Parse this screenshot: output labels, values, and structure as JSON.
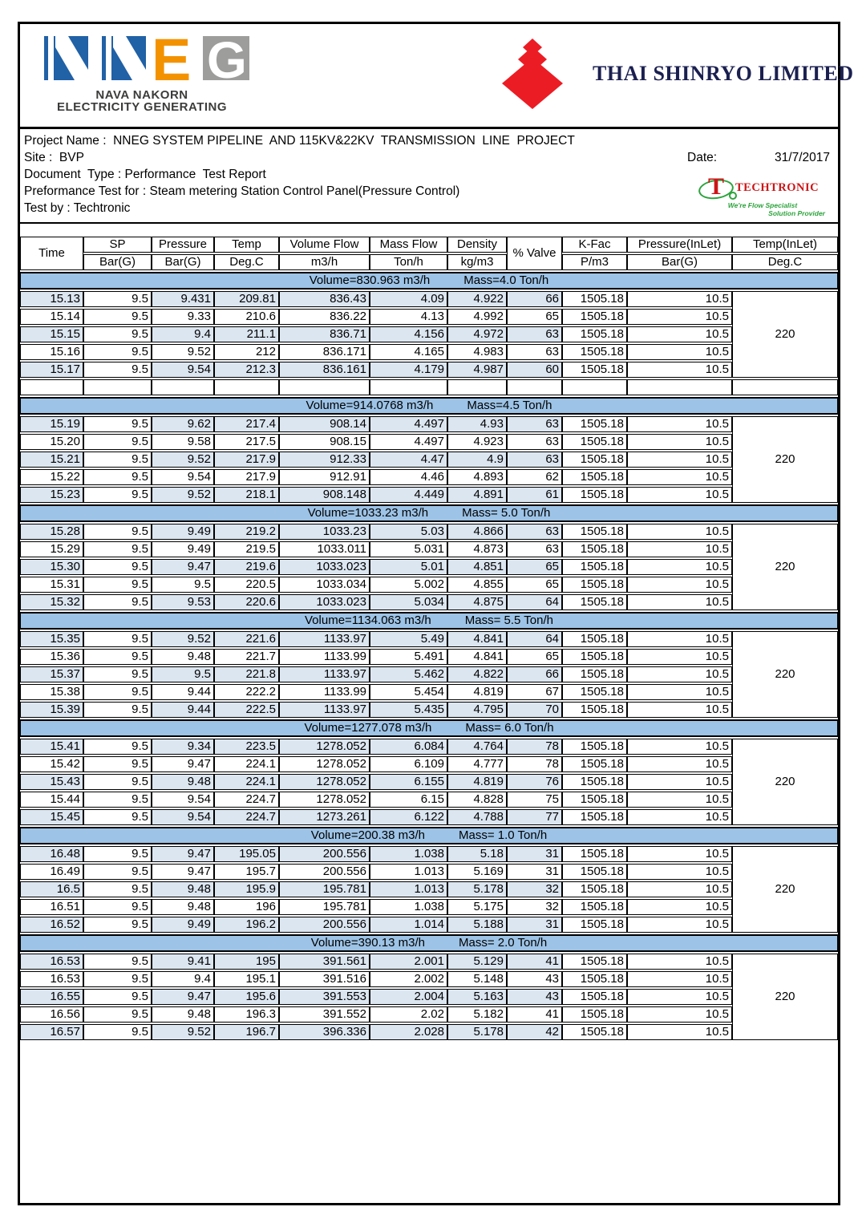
{
  "branding": {
    "nneg": {
      "letters": [
        "N",
        "N",
        "E",
        "G"
      ],
      "name_line1": "NAVA NAKORN",
      "name_line2": "ELECTRICITY GENERATING"
    },
    "shinryo": {
      "company": "THAI SHINRYO LIMITED"
    },
    "techtronic": {
      "t_letter": "T",
      "name": "TECHTRONIC",
      "tagline1": "We're Flow Specialist",
      "tagline2": "Solution Provider"
    }
  },
  "info": {
    "lines": [
      "Project Name :  NNEG SYSTEM PIPELINE  AND 115KV&22KV  TRANSMISSION  LINE  PROJECT",
      "Site :  BVP",
      "Document  Type : Performance  Test Report",
      "Preformance Test for : Steam metering Station Control Panel(Pressure Control)",
      "Test by : Techtronic"
    ],
    "date_label": "Date:",
    "date_value": "31/7/2017"
  },
  "table": {
    "columns": [
      {
        "label": "Time",
        "unit": null
      },
      {
        "label": "SP",
        "unit": "Bar(G)"
      },
      {
        "label": "Pressure",
        "unit": "Bar(G)"
      },
      {
        "label": "Temp",
        "unit": "Deg.C"
      },
      {
        "label": "Volume Flow",
        "unit": "m3/h"
      },
      {
        "label": "Mass Flow",
        "unit": "Ton/h"
      },
      {
        "label": "Density",
        "unit": "kg/m3"
      },
      {
        "label": "% Valve",
        "unit": null
      },
      {
        "label": "K-Fac",
        "unit": "P/m3"
      },
      {
        "label": "Pressure(InLet)",
        "unit": "Bar(G)"
      },
      {
        "label": "Temp(InLet)",
        "unit": "Deg.C"
      }
    ],
    "sections": [
      {
        "volume_label": "Volume=830.963 m3/h",
        "mass_label": "Mass=4.0 Ton/h",
        "temp_inlet": "220",
        "trailing_blank_row": true,
        "rows": [
          [
            "15.13",
            "9.5",
            "9.431",
            "209.81",
            "836.43",
            "4.09",
            "4.922",
            "66",
            "1505.18",
            "10.5"
          ],
          [
            "15.14",
            "9.5",
            "9.33",
            "210.6",
            "836.22",
            "4.13",
            "4.992",
            "65",
            "1505.18",
            "10.5"
          ],
          [
            "15.15",
            "9.5",
            "9.4",
            "211.1",
            "836.71",
            "4.156",
            "4.972",
            "63",
            "1505.18",
            "10.5"
          ],
          [
            "15.16",
            "9.5",
            "9.52",
            "212",
            "836.171",
            "4.165",
            "4.983",
            "63",
            "1505.18",
            "10.5"
          ],
          [
            "15.17",
            "9.5",
            "9.54",
            "212.3",
            "836.161",
            "4.179",
            "4.987",
            "60",
            "1505.18",
            "10.5"
          ]
        ]
      },
      {
        "volume_label": "Volume=914.0768 m3/h",
        "mass_label": "Mass=4.5 Ton/h",
        "temp_inlet": "220",
        "trailing_blank_row": false,
        "rows": [
          [
            "15.19",
            "9.5",
            "9.62",
            "217.4",
            "908.14",
            "4.497",
            "4.93",
            "63",
            "1505.18",
            "10.5"
          ],
          [
            "15.20",
            "9.5",
            "9.58",
            "217.5",
            "908.15",
            "4.497",
            "4.923",
            "63",
            "1505.18",
            "10.5"
          ],
          [
            "15.21",
            "9.5",
            "9.52",
            "217.9",
            "912.33",
            "4.47",
            "4.9",
            "63",
            "1505.18",
            "10.5"
          ],
          [
            "15.22",
            "9.5",
            "9.54",
            "217.9",
            "912.91",
            "4.46",
            "4.893",
            "62",
            "1505.18",
            "10.5"
          ],
          [
            "15.23",
            "9.5",
            "9.52",
            "218.1",
            "908.148",
            "4.449",
            "4.891",
            "61",
            "1505.18",
            "10.5"
          ]
        ]
      },
      {
        "volume_label": "Volume=1033.23 m3/h",
        "mass_label": "Mass= 5.0 Ton/h",
        "temp_inlet": "220",
        "trailing_blank_row": false,
        "rows": [
          [
            "15.28",
            "9.5",
            "9.49",
            "219.2",
            "1033.23",
            "5.03",
            "4.866",
            "63",
            "1505.18",
            "10.5"
          ],
          [
            "15.29",
            "9.5",
            "9.49",
            "219.5",
            "1033.011",
            "5.031",
            "4.873",
            "63",
            "1505.18",
            "10.5"
          ],
          [
            "15.30",
            "9.5",
            "9.47",
            "219.6",
            "1033.023",
            "5.01",
            "4.851",
            "65",
            "1505.18",
            "10.5"
          ],
          [
            "15.31",
            "9.5",
            "9.5",
            "220.5",
            "1033.034",
            "5.002",
            "4.855",
            "65",
            "1505.18",
            "10.5"
          ],
          [
            "15.32",
            "9.5",
            "9.53",
            "220.6",
            "1033.023",
            "5.034",
            "4.875",
            "64",
            "1505.18",
            "10.5"
          ]
        ]
      },
      {
        "volume_label": "Volume=1134.063 m3/h",
        "mass_label": "Mass= 5.5 Ton/h",
        "temp_inlet": "220",
        "trailing_blank_row": false,
        "rows": [
          [
            "15.35",
            "9.5",
            "9.52",
            "221.6",
            "1133.97",
            "5.49",
            "4.841",
            "64",
            "1505.18",
            "10.5"
          ],
          [
            "15.36",
            "9.5",
            "9.48",
            "221.7",
            "1133.99",
            "5.491",
            "4.841",
            "65",
            "1505.18",
            "10.5"
          ],
          [
            "15.37",
            "9.5",
            "9.5",
            "221.8",
            "1133.97",
            "5.462",
            "4.822",
            "66",
            "1505.18",
            "10.5"
          ],
          [
            "15.38",
            "9.5",
            "9.44",
            "222.2",
            "1133.99",
            "5.454",
            "4.819",
            "67",
            "1505.18",
            "10.5"
          ],
          [
            "15.39",
            "9.5",
            "9.44",
            "222.5",
            "1133.97",
            "5.435",
            "4.795",
            "70",
            "1505.18",
            "10.5"
          ]
        ]
      },
      {
        "volume_label": "Volume=1277.078  m3/h",
        "mass_label": "Mass= 6.0 Ton/h",
        "temp_inlet": "220",
        "trailing_blank_row": false,
        "rows": [
          [
            "15.41",
            "9.5",
            "9.34",
            "223.5",
            "1278.052",
            "6.084",
            "4.764",
            "78",
            "1505.18",
            "10.5"
          ],
          [
            "15.42",
            "9.5",
            "9.47",
            "224.1",
            "1278.052",
            "6.109",
            "4.777",
            "78",
            "1505.18",
            "10.5"
          ],
          [
            "15.43",
            "9.5",
            "9.48",
            "224.1",
            "1278.052",
            "6.155",
            "4.819",
            "76",
            "1505.18",
            "10.5"
          ],
          [
            "15.44",
            "9.5",
            "9.54",
            "224.7",
            "1278.052",
            "6.15",
            "4.828",
            "75",
            "1505.18",
            "10.5"
          ],
          [
            "15.45",
            "9.5",
            "9.54",
            "224.7",
            "1273.261",
            "6.122",
            "4.788",
            "77",
            "1505.18",
            "10.5"
          ]
        ]
      },
      {
        "volume_label": "Volume=200.38  m3/h",
        "mass_label": "Mass= 1.0 Ton/h",
        "temp_inlet": "220",
        "trailing_blank_row": false,
        "rows": [
          [
            "16.48",
            "9.5",
            "9.47",
            "195.05",
            "200.556",
            "1.038",
            "5.18",
            "31",
            "1505.18",
            "10.5"
          ],
          [
            "16.49",
            "9.5",
            "9.47",
            "195.7",
            "200.556",
            "1.013",
            "5.169",
            "31",
            "1505.18",
            "10.5"
          ],
          [
            "16.5",
            "9.5",
            "9.48",
            "195.9",
            "195.781",
            "1.013",
            "5.178",
            "32",
            "1505.18",
            "10.5"
          ],
          [
            "16.51",
            "9.5",
            "9.48",
            "196",
            "195.781",
            "1.038",
            "5.175",
            "32",
            "1505.18",
            "10.5"
          ],
          [
            "16.52",
            "9.5",
            "9.49",
            "196.2",
            "200.556",
            "1.014",
            "5.188",
            "31",
            "1505.18",
            "10.5"
          ]
        ]
      },
      {
        "volume_label": "Volume=390.13  m3/h",
        "mass_label": "Mass= 2.0 Ton/h",
        "temp_inlet": "220",
        "trailing_blank_row": false,
        "rows": [
          [
            "16.53",
            "9.5",
            "9.41",
            "195",
            "391.561",
            "2.001",
            "5.129",
            "41",
            "1505.18",
            "10.5"
          ],
          [
            "16.53",
            "9.5",
            "9.4",
            "195.1",
            "391.516",
            "2.002",
            "5.148",
            "43",
            "1505.18",
            "10.5"
          ],
          [
            "16.55",
            "9.5",
            "9.47",
            "195.6",
            "391.553",
            "2.004",
            "5.163",
            "43",
            "1505.18",
            "10.5"
          ],
          [
            "16.56",
            "9.5",
            "9.48",
            "196.3",
            "391.552",
            "2.02",
            "5.182",
            "41",
            "1505.18",
            "10.5"
          ],
          [
            "16.57",
            "9.5",
            "9.52",
            "196.7",
            "396.336",
            "2.028",
            "5.178",
            "42",
            "1505.18",
            "10.5"
          ]
        ]
      }
    ]
  },
  "colors": {
    "band_blue": "#9dc3e6",
    "row_alt_blue": "#dce6f1",
    "nneg_blue": "#2161a6",
    "nneg_orange": "#f39200",
    "nneg_gray": "#9d9d9c",
    "shinryo_red": "#ec1c24",
    "shinryo_navy": "#1b2050",
    "techtronic_red": "#cc1517",
    "techtronic_green": "#2da33c"
  }
}
